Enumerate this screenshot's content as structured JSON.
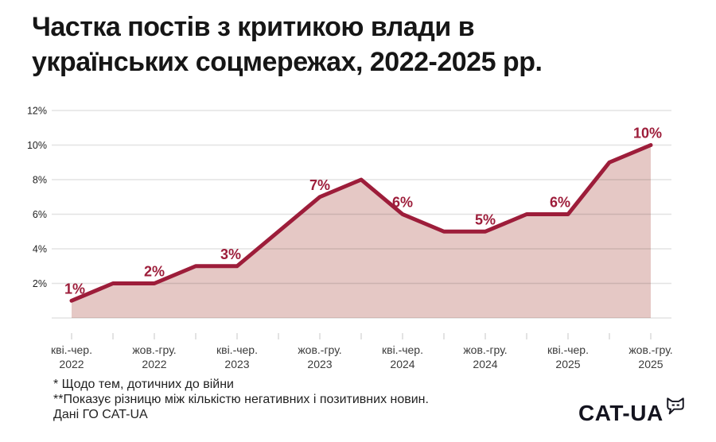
{
  "title_lines": [
    "Частка постів з критикою влади в",
    "українських соцмережах, 2022-2025 рр."
  ],
  "chart_data": {
    "type": "area",
    "title": "Частка постів з критикою влади в українських соцмережах, 2022-2025 рр.",
    "x_unit": "quarter",
    "values": [
      1,
      2,
      2,
      3,
      3,
      5,
      7,
      8,
      6,
      5,
      5,
      6,
      6,
      9,
      10
    ],
    "point_labels": [
      "1%",
      "",
      "2%",
      "",
      "3%",
      "",
      "7%",
      "",
      "6%",
      "",
      "5%",
      "",
      "6%",
      "",
      "10%"
    ],
    "x_tick_labels": [
      {
        "at": 0,
        "period": "кві.-чер.",
        "year": "2022"
      },
      {
        "at": 2,
        "period": "жов.-гру.",
        "year": "2022"
      },
      {
        "at": 4,
        "period": "кві.-чер.",
        "year": "2023"
      },
      {
        "at": 6,
        "period": "жов.-гру.",
        "year": "2023"
      },
      {
        "at": 8,
        "period": "кві.-чер.",
        "year": "2024"
      },
      {
        "at": 10,
        "period": "жов.-гру.",
        "year": "2024"
      },
      {
        "at": 12,
        "period": "кві.-чер.",
        "year": "2025"
      },
      {
        "at": 14,
        "period": "жов.-гру.",
        "year": "2025"
      }
    ],
    "y_ticks": [
      {
        "value": 2,
        "label": "2%"
      },
      {
        "value": 4,
        "label": "4%"
      },
      {
        "value": 6,
        "label": "6%"
      },
      {
        "value": 8,
        "label": "8%"
      },
      {
        "value": 10,
        "label": "10%"
      },
      {
        "value": 12,
        "label": "12%"
      }
    ],
    "ylim": [
      0,
      12
    ],
    "grid": true,
    "legend": "none",
    "line_color": "#9d1d3a",
    "area_color": "#e5c8c5",
    "label_color": "#9d1d3a",
    "label_dx": {
      "0": 4,
      "4": -8,
      "12": -10,
      "14": -4
    }
  },
  "footnotes": [
    "* Щодо тем, дотичних до війни",
    "**Показує різницю між кількістю негативних і позитивних новин.",
    "Дані ГО CAT-UA"
  ],
  "logo": {
    "text": "CAT-UA",
    "icon": "cat-speech-bubble"
  }
}
